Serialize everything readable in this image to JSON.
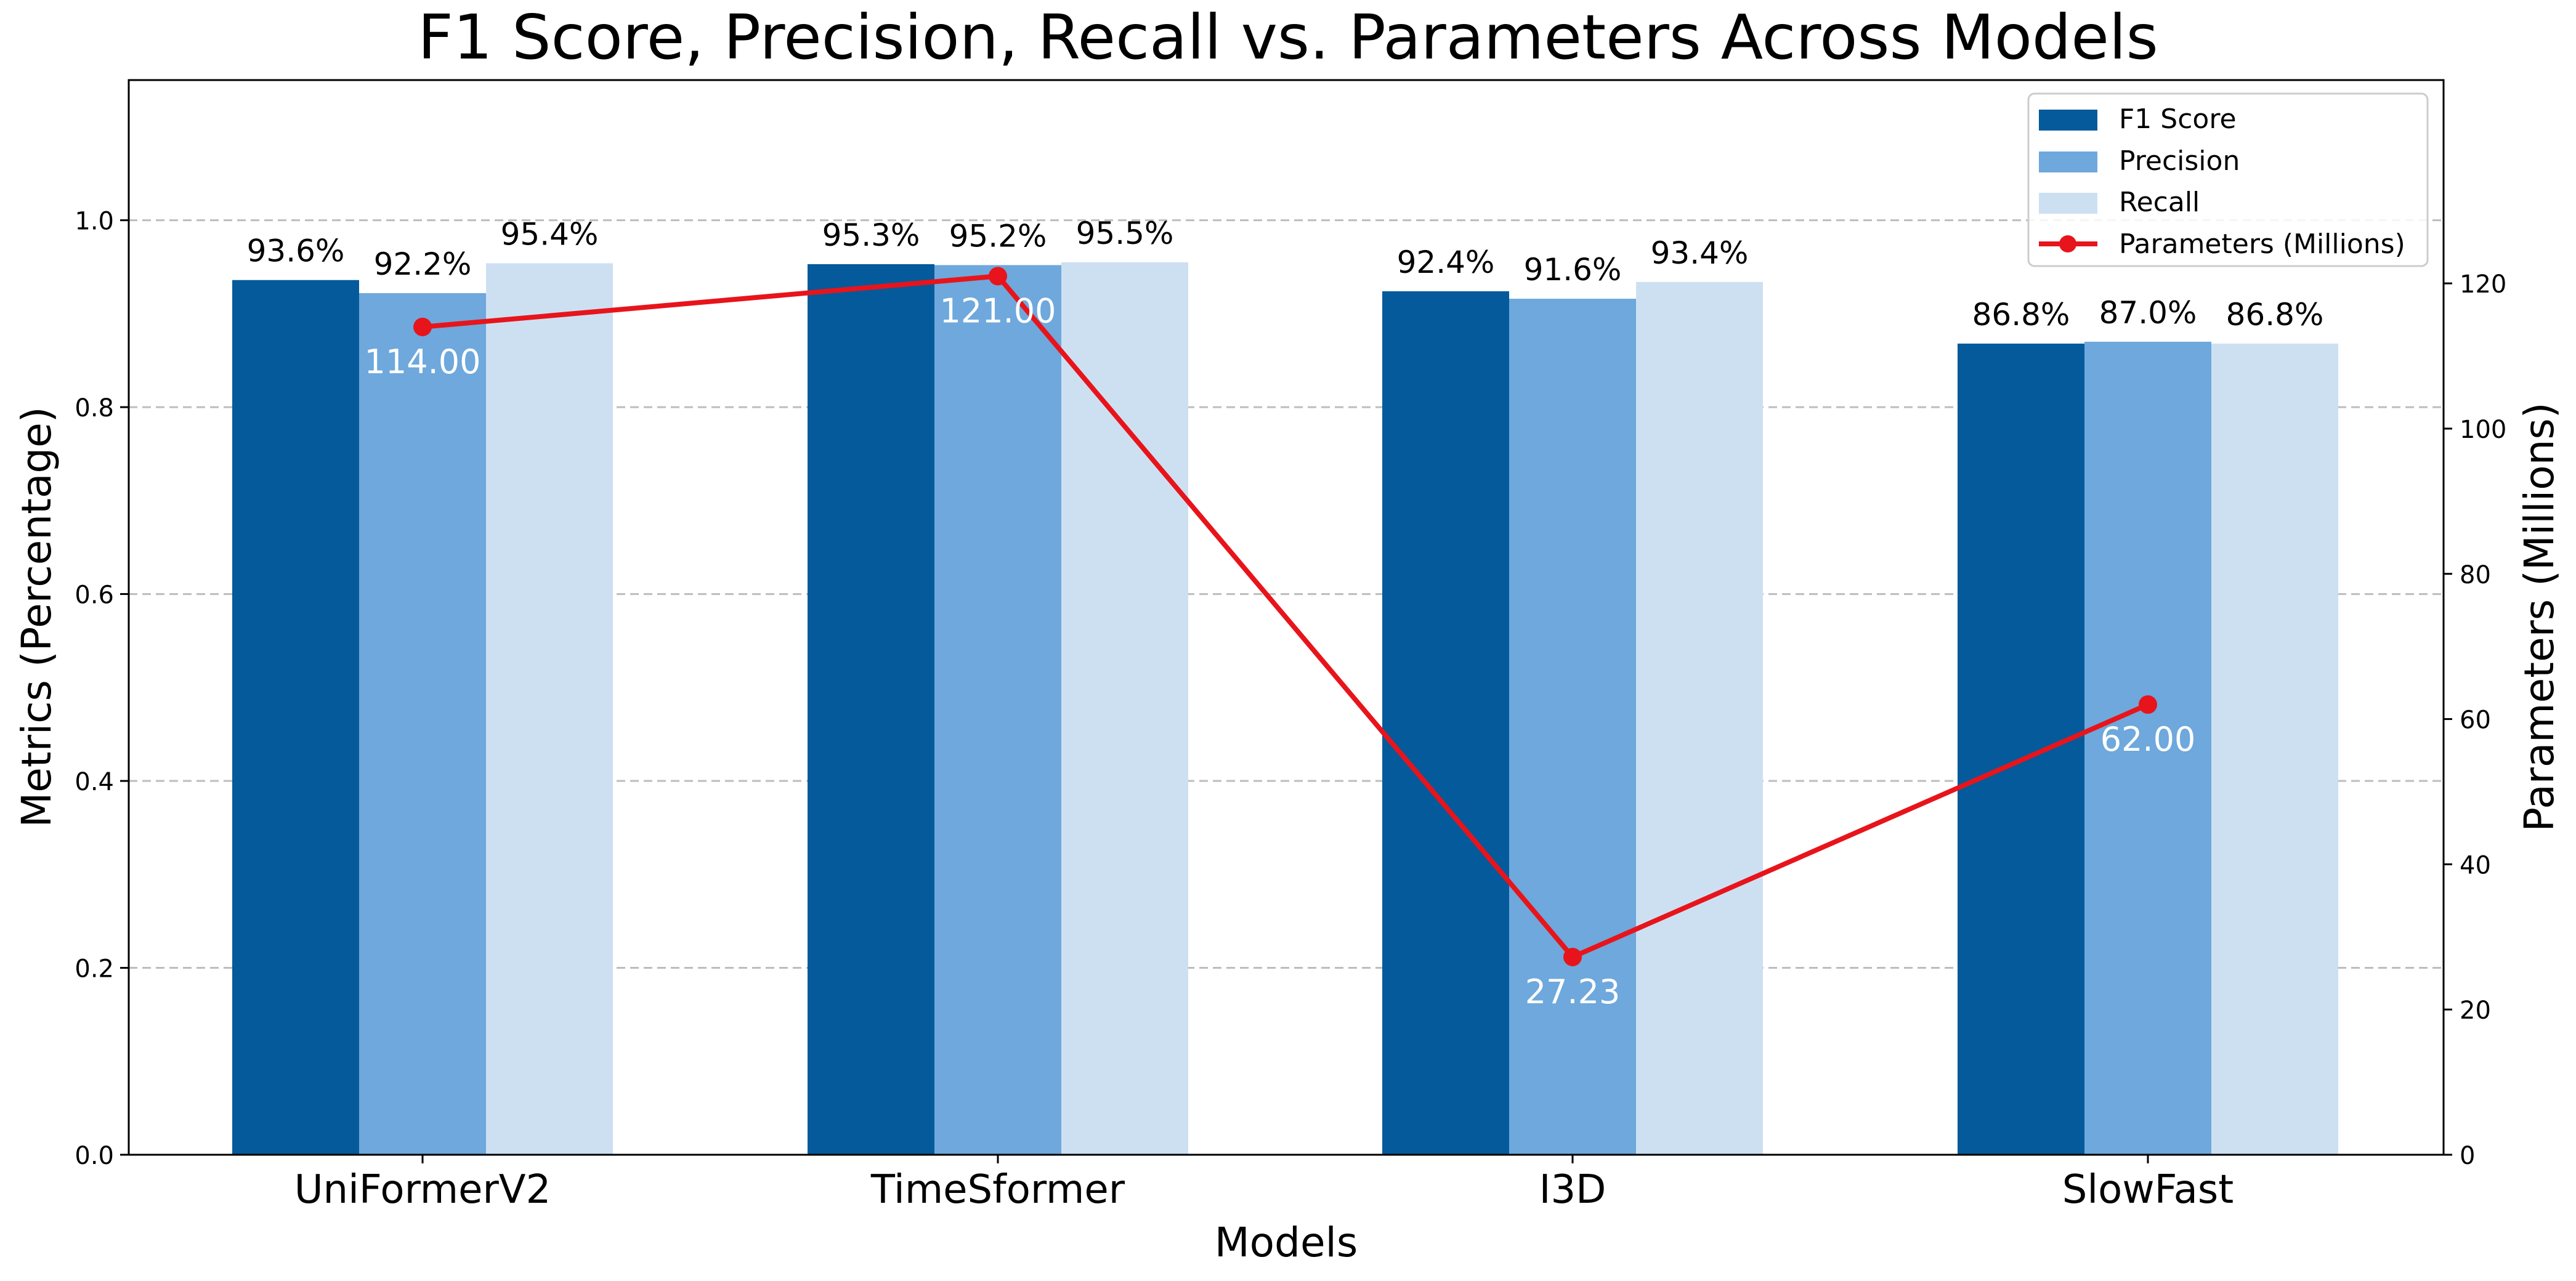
{
  "chart_data": {
    "type": "bar",
    "title": "F1 Score, Precision, Recall vs. Parameters Across Models",
    "xlabel": "Models",
    "ylabel": "Metrics (Percentage)",
    "y2label": "Parameters (Millions)",
    "categories": [
      "UniFormerV2",
      "TimeSformer",
      "I3D",
      "SlowFast"
    ],
    "ylim": [
      0,
      1.15
    ],
    "y2lim": [
      0,
      148
    ],
    "yticks": [
      "0.0",
      "0.2",
      "0.4",
      "0.6",
      "0.8",
      "1.0"
    ],
    "y2ticks": [
      "0",
      "20",
      "40",
      "60",
      "80",
      "100",
      "120"
    ],
    "grid": "horizontal dashed",
    "legend_position": "top-right",
    "series": [
      {
        "name": "F1 Score",
        "color": "#045a9a",
        "values": [
          0.936,
          0.953,
          0.924,
          0.868
        ],
        "labels": [
          "93.6%",
          "95.3%",
          "92.4%",
          "86.8%"
        ]
      },
      {
        "name": "Precision",
        "color": "#6ea8dc",
        "values": [
          0.922,
          0.952,
          0.916,
          0.87
        ],
        "labels": [
          "92.2%",
          "95.2%",
          "91.6%",
          "87.0%"
        ]
      },
      {
        "name": "Recall",
        "color": "#cde0f2",
        "values": [
          0.954,
          0.955,
          0.934,
          0.868
        ],
        "labels": [
          "95.4%",
          "95.5%",
          "93.4%",
          "86.8%"
        ]
      }
    ],
    "line_series": {
      "name": "Parameters (Millions)",
      "color": "#e8141b",
      "axis": "right",
      "values": [
        114.0,
        121.0,
        27.23,
        62.0
      ],
      "labels": [
        "114.00",
        "121.00",
        "27.23",
        "62.00"
      ]
    }
  }
}
